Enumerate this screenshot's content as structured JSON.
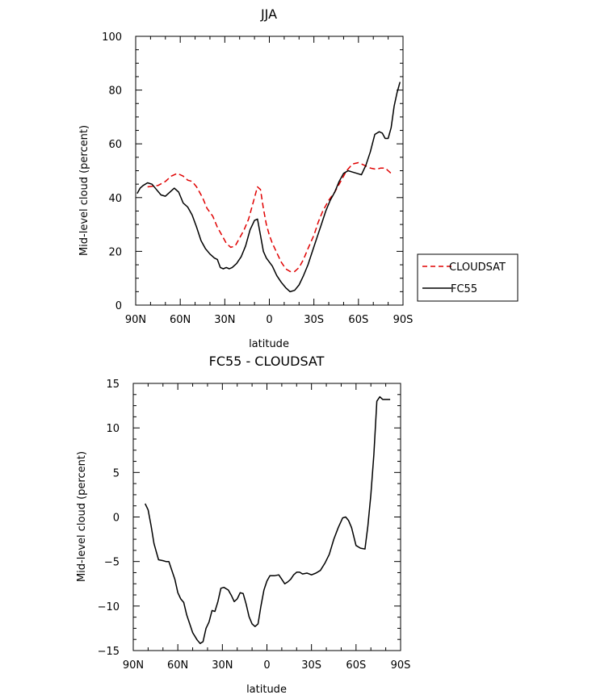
{
  "chart_data": [
    {
      "type": "line",
      "title": "JJA",
      "xlabel": "latitude",
      "ylabel": "Mid-level cloud (percent)",
      "xlim": [
        -90,
        90
      ],
      "ylim": [
        0,
        100
      ],
      "x_ticks": [
        -90,
        -60,
        -30,
        0,
        30,
        60,
        90
      ],
      "x_tick_labels": [
        "90N",
        "60N",
        "30N",
        "0",
        "30S",
        "60S",
        "90S"
      ],
      "y_ticks": [
        0,
        20,
        40,
        60,
        80,
        100
      ],
      "y_tick_labels": [
        "0",
        "20",
        "40",
        "60",
        "80",
        "100"
      ],
      "legend_position": "right",
      "series": [
        {
          "name": "CLOUDSAT",
          "color": "#e00000",
          "dash": "dashed",
          "x": [
            -82,
            -75,
            -70,
            -66,
            -62,
            -58,
            -55,
            -52,
            -49,
            -45,
            -42,
            -38,
            -35,
            -32,
            -29,
            -26,
            -23,
            -20,
            -17,
            -14,
            -11,
            -8,
            -6,
            -4,
            -2,
            0,
            2,
            5,
            8,
            11,
            14,
            17,
            20,
            23,
            26,
            30,
            33,
            36,
            40,
            44,
            48,
            52,
            56,
            60,
            64,
            68,
            72,
            75,
            78,
            80,
            82
          ],
          "y": [
            44,
            44.5,
            46,
            48,
            49,
            48,
            46.5,
            46,
            44,
            40,
            36,
            33,
            29,
            26,
            23,
            21.5,
            22,
            25,
            28,
            32,
            38,
            44,
            43,
            36,
            30,
            26,
            23,
            19.5,
            16,
            13.5,
            12.5,
            12.5,
            14,
            17,
            21,
            26,
            31,
            35,
            39,
            42,
            46,
            50,
            52.5,
            53,
            52,
            51,
            50.5,
            51,
            51,
            50,
            49
          ]
        },
        {
          "name": "FC55",
          "color": "#000000",
          "dash": "solid",
          "x": [
            -89,
            -87,
            -85,
            -82,
            -79,
            -76,
            -73,
            -70,
            -67,
            -64,
            -61,
            -58,
            -55,
            -52,
            -49,
            -46,
            -43,
            -40,
            -37,
            -35,
            -33,
            -31,
            -29,
            -27,
            -25,
            -22,
            -19,
            -16,
            -13,
            -10,
            -8,
            -6,
            -4,
            -2,
            0,
            2,
            5,
            8,
            11,
            14,
            17,
            20,
            23,
            26,
            29,
            32,
            35,
            38,
            41,
            44,
            47,
            50,
            53,
            56,
            59,
            62,
            65,
            68,
            71,
            74,
            76,
            78,
            80,
            82,
            84,
            86,
            88
          ],
          "y": [
            41.5,
            43.5,
            44.5,
            45.5,
            45,
            43,
            41,
            40.5,
            42,
            43.5,
            42,
            38,
            36.5,
            33.5,
            29,
            24,
            21,
            19,
            17.5,
            17,
            14,
            13.5,
            14,
            13.5,
            14,
            15.5,
            18,
            22,
            28,
            31.5,
            32,
            26,
            20,
            17.5,
            16,
            14.5,
            11,
            8.5,
            6.5,
            5,
            5.5,
            7.5,
            11,
            15,
            20,
            25,
            30,
            35,
            39,
            42,
            46,
            49,
            50,
            49.5,
            49,
            48.5,
            52,
            57,
            63.5,
            64.5,
            64,
            62,
            62,
            66,
            74,
            79,
            83
          ]
        }
      ]
    },
    {
      "type": "line",
      "title": "FC55 - CLOUDSAT",
      "xlabel": "latitude",
      "ylabel": "Mid-level cloud (percent)",
      "xlim": [
        -90,
        90
      ],
      "ylim": [
        -15,
        15
      ],
      "x_ticks": [
        -90,
        -60,
        -30,
        0,
        30,
        60,
        90
      ],
      "x_tick_labels": [
        "90N",
        "60N",
        "30N",
        "0",
        "30S",
        "60S",
        "90S"
      ],
      "y_ticks": [
        -15,
        -10,
        -5,
        0,
        5,
        10,
        15
      ],
      "y_tick_labels": [
        "−15",
        "−10",
        "−5",
        "0",
        "5",
        "10",
        "15"
      ],
      "series": [
        {
          "color": "#000000",
          "dash": "solid",
          "x": [
            -82,
            -80,
            -78,
            -76,
            -73,
            -70,
            -68,
            -66,
            -64,
            -62,
            -60,
            -58,
            -56,
            -54,
            -52,
            -50,
            -47,
            -45,
            -43,
            -41,
            -39,
            -37,
            -35,
            -33,
            -31,
            -29,
            -26,
            -24,
            -22,
            -20,
            -18,
            -16,
            -14,
            -12,
            -10,
            -8,
            -6,
            -4,
            -2,
            0,
            2,
            5,
            8,
            10,
            12,
            14,
            16,
            18,
            20,
            22,
            24,
            27,
            30,
            33,
            36,
            39,
            42,
            45,
            48,
            51,
            53,
            55,
            57,
            60,
            63,
            66,
            68,
            70,
            72,
            74,
            76,
            78,
            80,
            83
          ],
          "y": [
            1.5,
            0.8,
            -1,
            -3,
            -4.8,
            -4.9,
            -5,
            -5,
            -6,
            -7,
            -8.5,
            -9.2,
            -9.6,
            -11,
            -12,
            -13,
            -13.8,
            -14.2,
            -14,
            -12.5,
            -11.8,
            -10.5,
            -10.6,
            -9.5,
            -8,
            -7.9,
            -8.2,
            -8.8,
            -9.5,
            -9.2,
            -8.5,
            -8.6,
            -9.8,
            -11.2,
            -12,
            -12.3,
            -12,
            -10,
            -8.2,
            -7.2,
            -6.6,
            -6.6,
            -6.5,
            -7,
            -7.5,
            -7.3,
            -7,
            -6.5,
            -6.2,
            -6.2,
            -6.4,
            -6.3,
            -6.5,
            -6.3,
            -6,
            -5.2,
            -4.2,
            -2.5,
            -1.2,
            -0.1,
            0,
            -0.4,
            -1.2,
            -3.2,
            -3.5,
            -3.6,
            -1,
            2.5,
            7,
            13,
            13.5,
            13.2,
            13.2,
            13.2
          ]
        }
      ]
    }
  ]
}
